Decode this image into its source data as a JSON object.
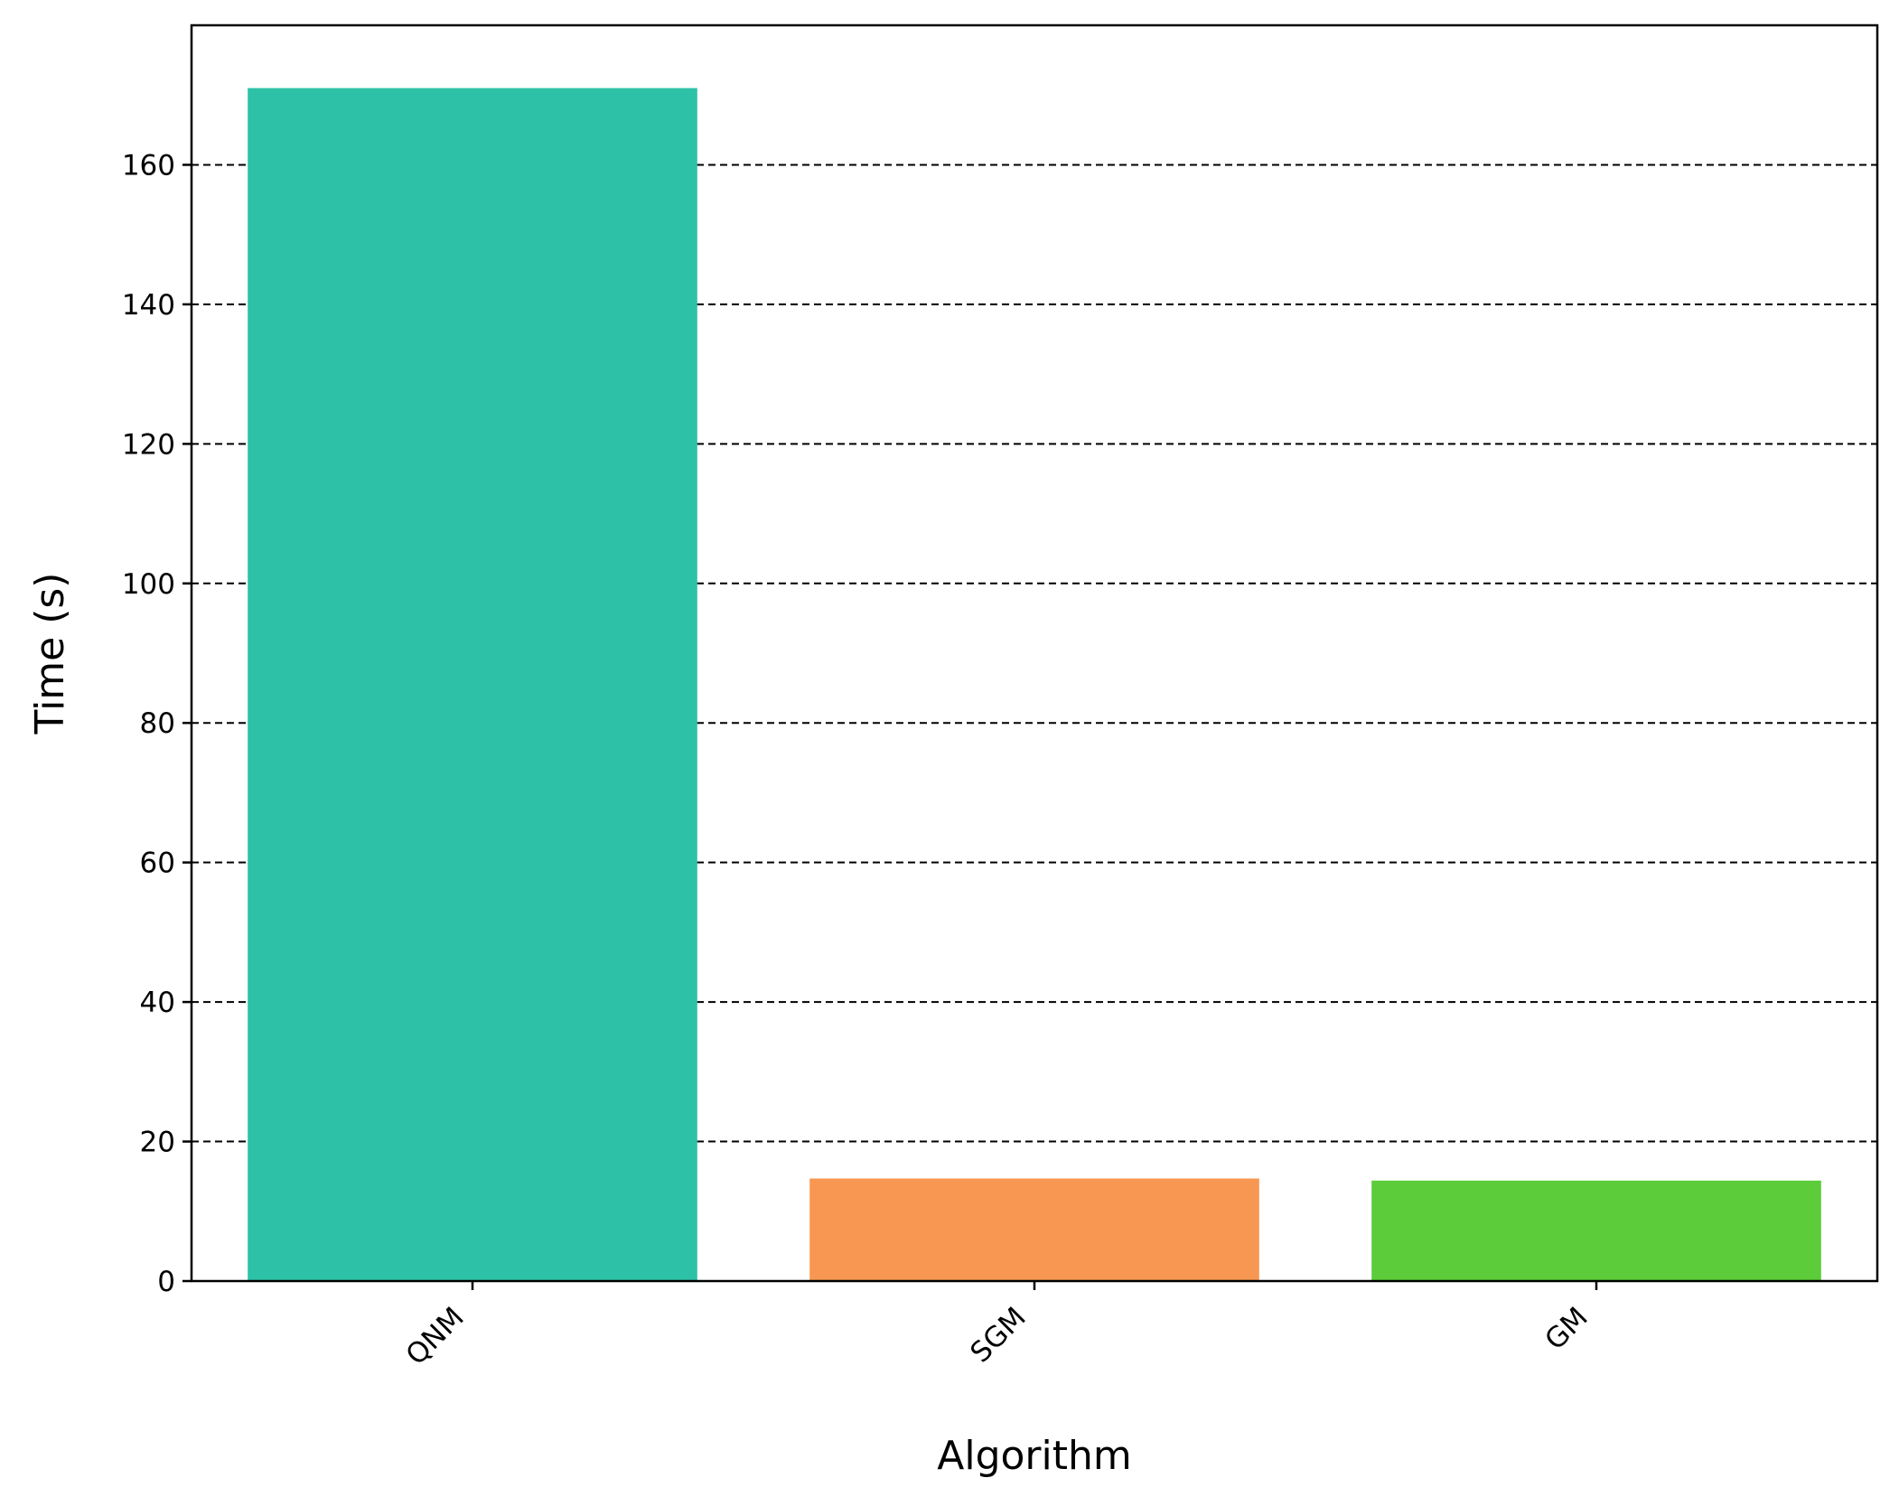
{
  "chart_data": {
    "type": "bar",
    "title": "",
    "xlabel": "Algorithm",
    "ylabel": "Time (s)",
    "categories": [
      "QNM",
      "SGM",
      "GM"
    ],
    "values": [
      171.0,
      14.7,
      14.4
    ],
    "colors": [
      "#2dc2a7",
      "#f79751",
      "#5ccc3a"
    ],
    "ylim": [
      0,
      180
    ],
    "yticks": [
      0,
      20,
      40,
      60,
      80,
      100,
      120,
      140,
      160
    ],
    "grid": "y-dashed",
    "legend": "none"
  }
}
